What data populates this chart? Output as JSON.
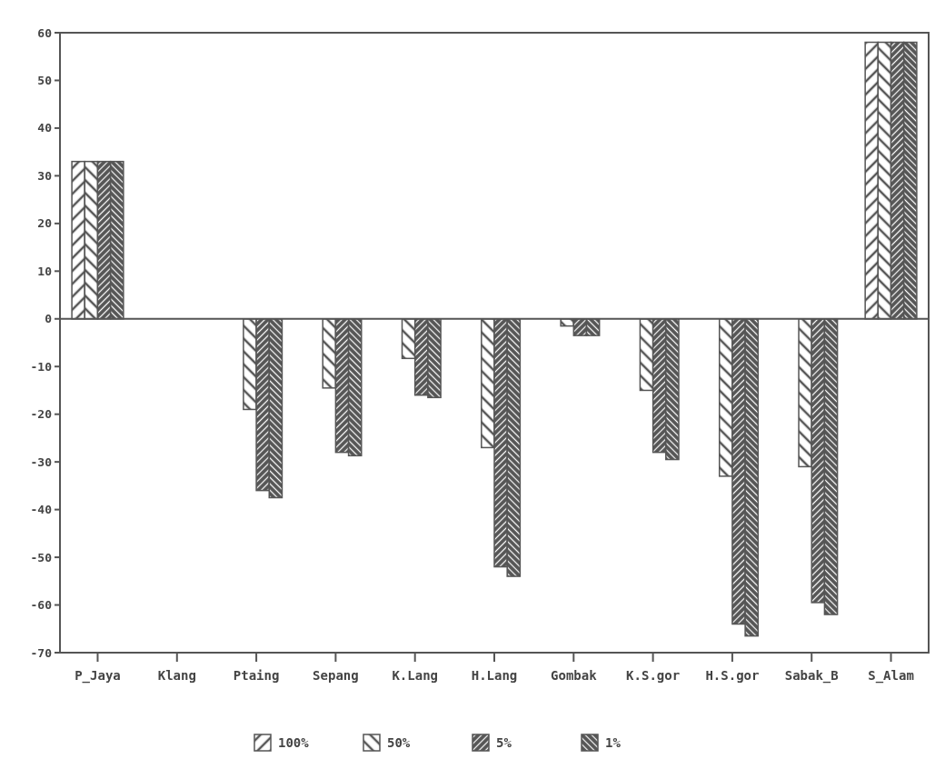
{
  "chart_data": {
    "type": "bar",
    "categories": [
      "P_Jaya",
      "Klang",
      "Ptaing",
      "Sepang",
      "K.Lang",
      "H.Lang",
      "Gombak",
      "K.S.gor",
      "H.S.gor",
      "Sabak_B",
      "S_Alam"
    ],
    "series": [
      {
        "name": "100%",
        "color": "#555555",
        "values": [
          33,
          0,
          0,
          0,
          0,
          0,
          0,
          0,
          0,
          0,
          58
        ]
      },
      {
        "name": "50%",
        "color": "#555555",
        "values": [
          33,
          0,
          -19,
          -14.5,
          -8.3,
          -27,
          -1.5,
          -15,
          -33,
          -31,
          58
        ]
      },
      {
        "name": "5%",
        "color": "#555555",
        "values": [
          33,
          0,
          -36,
          -28,
          -16,
          -52,
          -3.5,
          -28,
          -64,
          -59.5,
          58
        ]
      },
      {
        "name": "1%",
        "color": "#555555",
        "values": [
          33,
          0,
          -37.5,
          -28.7,
          -16.5,
          -54,
          -3.5,
          -29.5,
          -66.5,
          -62,
          58
        ]
      }
    ],
    "ylim": [
      -70,
      60
    ],
    "yticks": [
      -70,
      -60,
      -50,
      -40,
      -30,
      -20,
      -10,
      0,
      10,
      20,
      30,
      40,
      50,
      60
    ],
    "legend": "bottom"
  }
}
